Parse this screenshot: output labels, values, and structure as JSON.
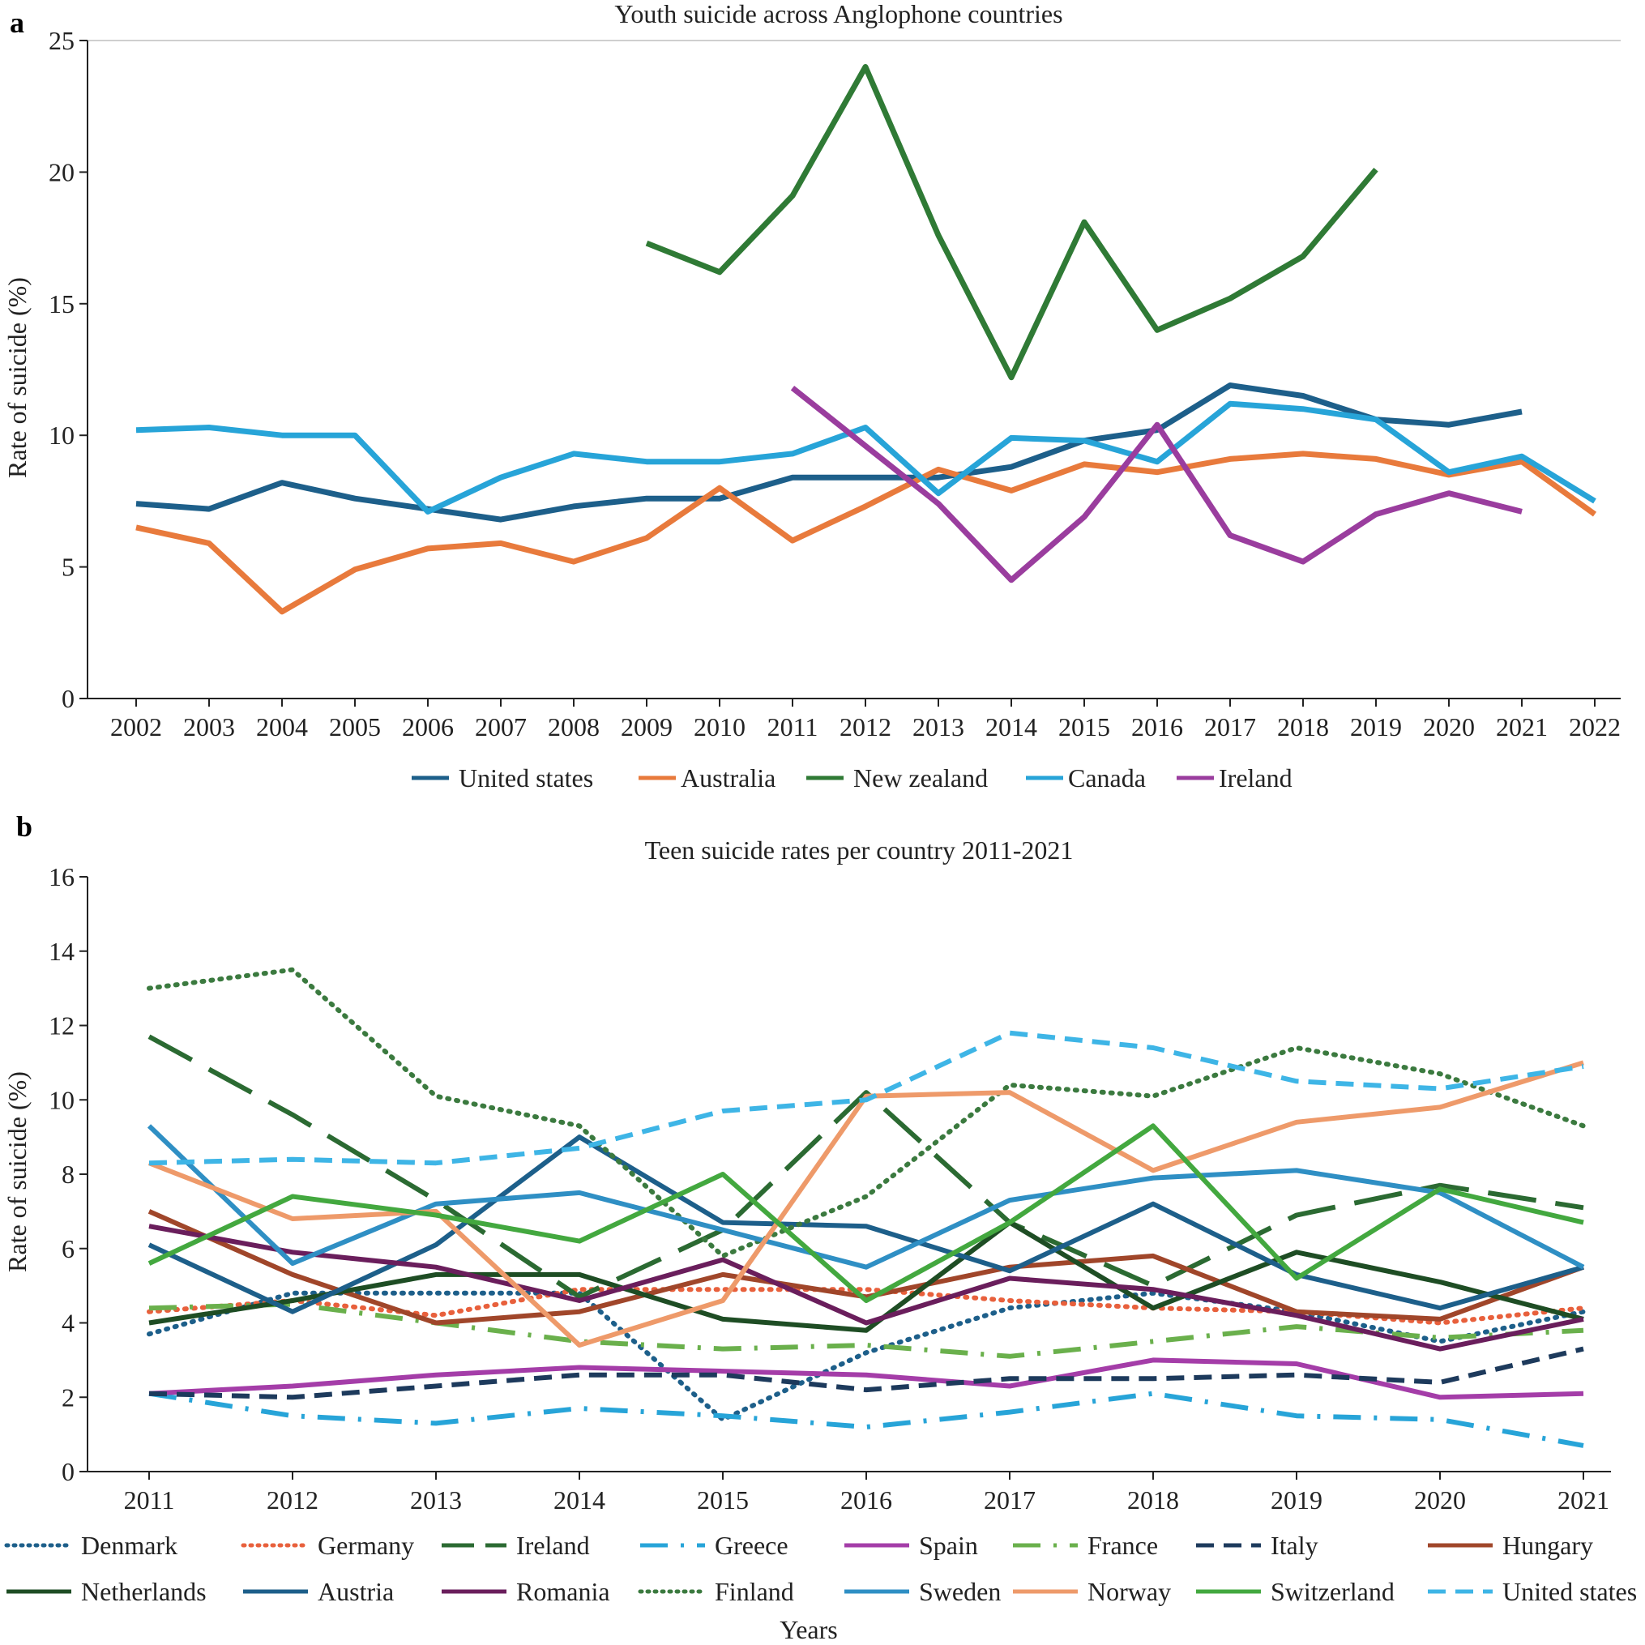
{
  "figure_labels": {
    "a": "a",
    "b": "b"
  },
  "chart_data": [
    {
      "type": "line",
      "title": "Youth suicide across Anglophone countries",
      "xlabel": "",
      "ylabel": "Rate of suicide (%)",
      "ylim": [
        0,
        25
      ],
      "yticks": [
        0,
        5,
        10,
        15,
        20,
        25
      ],
      "categories": [
        "2002",
        "2003",
        "2004",
        "2005",
        "2006",
        "2007",
        "2008",
        "2009",
        "2010",
        "2011",
        "2012",
        "2013",
        "2014",
        "2015",
        "2016",
        "2017",
        "2018",
        "2019",
        "2020",
        "2021",
        "2022"
      ],
      "legend_position": "bottom",
      "series": [
        {
          "name": "United states",
          "color": "#1d5f8a",
          "dash": "solid",
          "values": [
            7.4,
            7.2,
            8.2,
            7.6,
            7.2,
            6.8,
            7.3,
            7.6,
            7.6,
            8.4,
            8.4,
            8.4,
            8.8,
            9.8,
            10.2,
            11.9,
            11.5,
            10.6,
            10.4,
            10.9,
            null
          ]
        },
        {
          "name": "Australia",
          "color": "#e87a3c",
          "dash": "solid",
          "values": [
            6.5,
            5.9,
            3.3,
            4.9,
            5.7,
            5.9,
            5.2,
            6.1,
            8.0,
            6.0,
            7.3,
            8.7,
            7.9,
            8.9,
            8.6,
            9.1,
            9.3,
            9.1,
            8.5,
            9.0,
            7.0
          ]
        },
        {
          "name": "New zealand",
          "color": "#2f7a35",
          "dash": "solid",
          "values": [
            null,
            null,
            null,
            null,
            null,
            null,
            null,
            17.3,
            16.2,
            19.1,
            24.0,
            17.6,
            12.2,
            18.1,
            14.0,
            15.2,
            16.8,
            20.1,
            null,
            null,
            null
          ]
        },
        {
          "name": "Canada",
          "color": "#27a4d8",
          "dash": "solid",
          "values": [
            10.2,
            10.3,
            10.0,
            10.0,
            7.1,
            8.4,
            9.3,
            9.0,
            9.0,
            9.3,
            10.3,
            7.8,
            9.9,
            9.8,
            9.0,
            11.2,
            11.0,
            10.6,
            8.6,
            9.2,
            7.5
          ]
        },
        {
          "name": "Ireland",
          "color": "#9a3d9e",
          "dash": "solid",
          "values": [
            null,
            null,
            null,
            null,
            null,
            null,
            null,
            null,
            null,
            11.8,
            9.6,
            7.4,
            4.5,
            6.9,
            10.4,
            6.2,
            5.2,
            7.0,
            7.8,
            7.1,
            null
          ]
        }
      ]
    },
    {
      "type": "line",
      "title": "Teen suicide rates per country 2011-2021",
      "xlabel": "Years",
      "ylabel": "Rate of suicide (%)",
      "ylim": [
        0,
        16
      ],
      "yticks": [
        0,
        2,
        4,
        6,
        8,
        10,
        12,
        14,
        16
      ],
      "categories": [
        "2011",
        "2012",
        "2013",
        "2014",
        "2015",
        "2016",
        "2017",
        "2018",
        "2019",
        "2020",
        "2021"
      ],
      "legend_position": "bottom",
      "series": [
        {
          "name": "Denmark",
          "color": "#1d5f8a",
          "dash": "dot",
          "values": [
            3.7,
            4.8,
            4.8,
            4.8,
            1.4,
            3.2,
            4.4,
            4.8,
            4.3,
            3.5,
            4.3
          ]
        },
        {
          "name": "Germany",
          "color": "#e8603c",
          "dash": "dot",
          "values": [
            4.3,
            4.6,
            4.2,
            4.9,
            4.9,
            4.9,
            4.6,
            4.4,
            4.3,
            4.0,
            4.4
          ]
        },
        {
          "name": "Ireland",
          "color": "#2b6a32",
          "dash": "longdash",
          "values": [
            11.7,
            9.6,
            7.3,
            4.7,
            6.5,
            10.2,
            6.7,
            5.0,
            6.9,
            7.7,
            7.1
          ]
        },
        {
          "name": "Greece",
          "color": "#27a4d8",
          "dash": "dashdot",
          "values": [
            2.1,
            1.5,
            1.3,
            1.7,
            1.5,
            1.2,
            1.6,
            2.1,
            1.5,
            1.4,
            0.7
          ]
        },
        {
          "name": "Spain",
          "color": "#a43da8",
          "dash": "solid",
          "values": [
            2.1,
            2.3,
            2.6,
            2.8,
            2.7,
            2.6,
            2.3,
            3.0,
            2.9,
            2.0,
            2.1
          ]
        },
        {
          "name": "France",
          "color": "#6ab04c",
          "dash": "dashdot",
          "values": [
            4.4,
            4.5,
            4.0,
            3.5,
            3.3,
            3.4,
            3.1,
            3.5,
            3.9,
            3.6,
            3.8
          ]
        },
        {
          "name": "Italy",
          "color": "#1d3a5c",
          "dash": "dash",
          "values": [
            2.1,
            2.0,
            2.3,
            2.6,
            2.6,
            2.2,
            2.5,
            2.5,
            2.6,
            2.4,
            3.3
          ]
        },
        {
          "name": "Hungary",
          "color": "#a0462a",
          "dash": "solid",
          "values": [
            7.0,
            5.3,
            4.0,
            4.3,
            5.3,
            4.7,
            5.5,
            5.8,
            4.3,
            4.1,
            5.5
          ]
        },
        {
          "name": "Netherlands",
          "color": "#1e4d24",
          "dash": "solid",
          "values": [
            4.0,
            4.6,
            5.3,
            5.3,
            4.1,
            3.8,
            6.7,
            4.4,
            5.9,
            5.1,
            4.1
          ]
        },
        {
          "name": "Austria",
          "color": "#1d5f8a",
          "dash": "solid",
          "values": [
            6.1,
            4.3,
            6.1,
            9.0,
            6.7,
            6.6,
            5.4,
            7.2,
            5.3,
            4.4,
            5.5
          ]
        },
        {
          "name": "Romania",
          "color": "#6a1e5c",
          "dash": "solid",
          "values": [
            6.6,
            5.9,
            5.5,
            4.6,
            5.7,
            4.0,
            5.2,
            4.9,
            4.2,
            3.3,
            4.1
          ]
        },
        {
          "name": "Finland",
          "color": "#3b7a3f",
          "dash": "dot",
          "values": [
            13.0,
            13.5,
            10.1,
            9.3,
            5.8,
            7.4,
            10.4,
            10.1,
            11.4,
            10.7,
            9.3
          ]
        },
        {
          "name": "Sweden",
          "color": "#2f8fc4",
          "dash": "solid",
          "values": [
            9.3,
            5.6,
            7.2,
            7.5,
            6.5,
            5.5,
            7.3,
            7.9,
            8.1,
            7.5,
            5.5
          ]
        },
        {
          "name": "Norway",
          "color": "#ee9a6a",
          "dash": "solid",
          "values": [
            8.3,
            6.8,
            7.0,
            3.4,
            4.6,
            10.1,
            10.2,
            8.1,
            9.4,
            9.8,
            11.0
          ]
        },
        {
          "name": "Switzerland",
          "color": "#43a83f",
          "dash": "solid",
          "values": [
            5.6,
            7.4,
            6.9,
            6.2,
            8.0,
            4.6,
            6.7,
            9.3,
            5.2,
            7.6,
            6.7
          ]
        },
        {
          "name": "United states",
          "color": "#3eb5e6",
          "dash": "dash",
          "values": [
            8.3,
            8.4,
            8.3,
            8.7,
            9.7,
            10.0,
            11.8,
            11.4,
            10.5,
            10.3,
            10.9
          ]
        }
      ]
    }
  ]
}
